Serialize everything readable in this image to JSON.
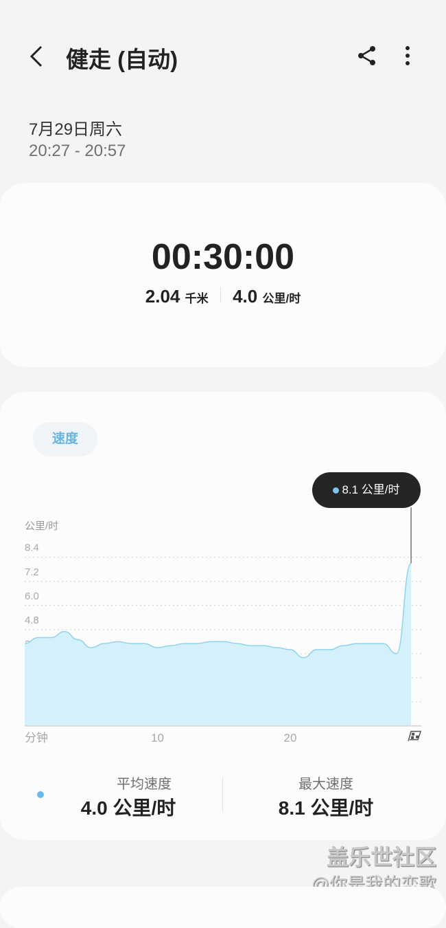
{
  "header": {
    "title": "健走 (自动)",
    "back_icon": "chevron-left-icon",
    "share_icon": "share-icon",
    "more_icon": "more-vertical-icon"
  },
  "session": {
    "date": "7月29日周六",
    "time_range": "20:27 - 20:57"
  },
  "summary": {
    "duration": "00:30:00",
    "distance": "2.04",
    "distance_unit": "千米",
    "speed": "4.0",
    "speed_unit": "公里/时"
  },
  "chart_tab": {
    "label": "速度"
  },
  "tooltip": {
    "text": "8.1 公里/时"
  },
  "chart_data": {
    "type": "area",
    "ylabel": "公里/时",
    "xlabel": "分钟",
    "y_ticks": [
      "1.2",
      "2.4",
      "3.6",
      "4.8",
      "6.0",
      "7.2",
      "8.4"
    ],
    "x_ticks": [
      "10",
      "20"
    ],
    "ylim": [
      0,
      8.4
    ],
    "xlim": [
      0,
      29.1
    ],
    "grid": true,
    "color": "#8fd3ec",
    "x": [
      0,
      1,
      2,
      3,
      4,
      5,
      6,
      7,
      8,
      9,
      10,
      11,
      12,
      13,
      14,
      15,
      16,
      17,
      18,
      19,
      20,
      21,
      22,
      23,
      24,
      25,
      26,
      27,
      28,
      29.1
    ],
    "y": [
      4.1,
      4.4,
      4.4,
      4.7,
      4.3,
      3.9,
      4.1,
      4.2,
      4.1,
      4.1,
      3.9,
      4.0,
      4.1,
      4.1,
      4.2,
      4.2,
      4.1,
      4.0,
      4.0,
      3.9,
      3.8,
      3.4,
      3.8,
      3.8,
      4.0,
      4.1,
      4.1,
      4.1,
      3.6,
      8.1
    ]
  },
  "stats": {
    "avg_label": "平均速度",
    "avg_value": "4.0 公里/时",
    "max_label": "最大速度",
    "max_value": "8.1 公里/时",
    "legend_color": "#6ab8ec"
  },
  "watermark": {
    "line1": "盖乐世社区",
    "line2": "@你是我的恋歌"
  }
}
